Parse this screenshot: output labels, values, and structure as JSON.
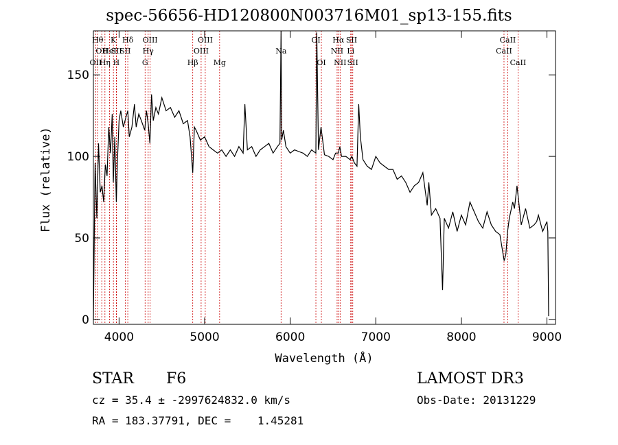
{
  "header": {
    "title": "spec-56656-HD120800N003716M01_sp13-155.fits"
  },
  "info": {
    "class": "STAR",
    "subclass": "F6",
    "survey": "LAMOST DR3",
    "cz": "cz = 35.4 ± -2997624832.0 km/s",
    "obs_date": "Obs-Date: 20131229",
    "radec": "RA = 183.37791, DEC =    1.45281"
  },
  "colors": {
    "line_marker": "#cc0000",
    "spectrum": "#000000",
    "axes": "#000000"
  },
  "chart_data": {
    "type": "line",
    "title": "spec-56656-HD120800N003716M01_sp13-155.fits",
    "xlabel": "Wavelength (Å)",
    "ylabel": "Flux (relative)",
    "xlim": [
      3700,
      9100
    ],
    "ylim": [
      -3,
      177
    ],
    "xticks": [
      4000,
      5000,
      6000,
      7000,
      8000,
      9000
    ],
    "yticks": [
      0,
      50,
      100,
      150
    ],
    "series": [
      {
        "name": "flux",
        "x": [
          3700,
          3720,
          3740,
          3760,
          3780,
          3800,
          3820,
          3840,
          3860,
          3880,
          3900,
          3920,
          3933,
          3950,
          3968,
          3980,
          4000,
          4020,
          4050,
          4080,
          4102,
          4120,
          4150,
          4180,
          4200,
          4230,
          4260,
          4300,
          4320,
          4340,
          4360,
          4380,
          4400,
          4430,
          4460,
          4500,
          4550,
          4600,
          4650,
          4700,
          4750,
          4800,
          4830,
          4861,
          4880,
          4900,
          4950,
          5000,
          5050,
          5100,
          5150,
          5200,
          5250,
          5300,
          5350,
          5400,
          5450,
          5470,
          5500,
          5550,
          5600,
          5650,
          5700,
          5750,
          5800,
          5850,
          5880,
          5893,
          5900,
          5920,
          5950,
          6000,
          6050,
          6100,
          6150,
          6200,
          6250,
          6300,
          6310,
          6330,
          6360,
          6400,
          6450,
          6500,
          6530,
          6563,
          6580,
          6600,
          6650,
          6700,
          6720,
          6750,
          6780,
          6800,
          6820,
          6850,
          6900,
          6950,
          7000,
          7050,
          7100,
          7150,
          7200,
          7250,
          7300,
          7350,
          7400,
          7450,
          7500,
          7550,
          7600,
          7620,
          7650,
          7700,
          7750,
          7780,
          7800,
          7850,
          7900,
          7950,
          8000,
          8050,
          8100,
          8150,
          8200,
          8250,
          8300,
          8350,
          8400,
          8450,
          8500,
          8520,
          8540,
          8560,
          8600,
          8620,
          8650,
          8700,
          8750,
          8800,
          8850,
          8880,
          8900,
          8950,
          9000,
          9010,
          9020
        ],
        "y": [
          0,
          96,
          62,
          108,
          78,
          82,
          72,
          95,
          88,
          118,
          102,
          126,
          84,
          112,
          72,
          96,
          122,
          128,
          118,
          124,
          128,
          112,
          118,
          132,
          118,
          126,
          122,
          116,
          128,
          120,
          108,
          138,
          122,
          130,
          126,
          136,
          128,
          130,
          124,
          128,
          120,
          122,
          112,
          90,
          118,
          116,
          110,
          112,
          106,
          104,
          102,
          104,
          100,
          104,
          100,
          106,
          102,
          132,
          104,
          106,
          100,
          104,
          106,
          108,
          102,
          106,
          108,
          180,
          110,
          116,
          106,
          102,
          104,
          103,
          102,
          100,
          104,
          102,
          176,
          104,
          118,
          101,
          100,
          98,
          102,
          102,
          106,
          100,
          100,
          98,
          100,
          96,
          94,
          132,
          112,
          98,
          94,
          92,
          100,
          96,
          94,
          92,
          92,
          86,
          88,
          84,
          78,
          82,
          84,
          90,
          70,
          84,
          64,
          68,
          62,
          18,
          62,
          56,
          66,
          54,
          64,
          58,
          72,
          66,
          60,
          56,
          66,
          58,
          54,
          52,
          36,
          40,
          54,
          62,
          72,
          68,
          82,
          58,
          68,
          56,
          58,
          60,
          64,
          54,
          60,
          54,
          2
        ]
      }
    ],
    "lines": [
      {
        "wl": 3750,
        "label": "Hθ",
        "row": 1
      },
      {
        "wl": 3798,
        "label": "OII",
        "row": 2
      },
      {
        "wl": 3727,
        "label": "OII",
        "row": 3
      },
      {
        "wl": 3835,
        "label": "Hη",
        "row": 3
      },
      {
        "wl": 3889,
        "label": "HeI",
        "row": 2
      },
      {
        "wl": 3934,
        "label": "K",
        "row": 1
      },
      {
        "wl": 3968,
        "label": "H",
        "row": 3
      },
      {
        "wl": 3970,
        "label": "SII",
        "row": 2
      },
      {
        "wl": 4102,
        "label": "Hδ",
        "row": 1
      },
      {
        "wl": 4072,
        "label": "SII",
        "row": 2
      },
      {
        "wl": 4340,
        "label": "Hγ",
        "row": 2
      },
      {
        "wl": 4363,
        "label": "OIII",
        "row": 1
      },
      {
        "wl": 4304,
        "label": "G",
        "row": 3
      },
      {
        "wl": 4861,
        "label": "Hβ",
        "row": 3
      },
      {
        "wl": 4959,
        "label": "OIII",
        "row": 2
      },
      {
        "wl": 5007,
        "label": "OIII",
        "row": 1
      },
      {
        "wl": 5175,
        "label": "Mg",
        "row": 3
      },
      {
        "wl": 5893,
        "label": "Na",
        "row": 2
      },
      {
        "wl": 6300,
        "label": "OI",
        "row": 1
      },
      {
        "wl": 6364,
        "label": "OI",
        "row": 3
      },
      {
        "wl": 6563,
        "label": "Hα",
        "row": 1
      },
      {
        "wl": 6548,
        "label": "NII",
        "row": 2
      },
      {
        "wl": 6583,
        "label": "NII",
        "row": 3
      },
      {
        "wl": 6707,
        "label": "Li",
        "row": 2
      },
      {
        "wl": 6717,
        "label": "SII",
        "row": 1
      },
      {
        "wl": 6731,
        "label": "SII",
        "row": 3
      },
      {
        "wl": 8498,
        "label": "CaII",
        "row": 2
      },
      {
        "wl": 8542,
        "label": "CaII",
        "row": 1
      },
      {
        "wl": 8662,
        "label": "CaII",
        "row": 3
      }
    ]
  }
}
